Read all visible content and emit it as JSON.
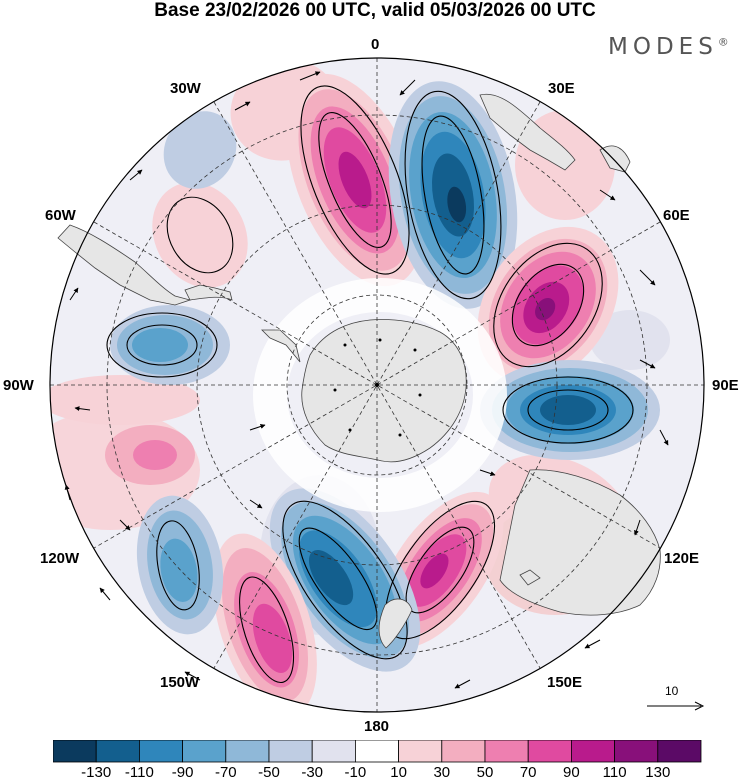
{
  "title": "Base 23/02/2026 00 UTC, valid 05/03/2026 00 UTC",
  "brand": "MODES",
  "brand_mark": "®",
  "longitude_labels": {
    "top": "0",
    "top_right": "30E",
    "right_upper": "60E",
    "right": "90E",
    "right_lower": "120E",
    "bottom_right": "150E",
    "bottom": "180",
    "bottom_left": "150W",
    "left_lower": "120W",
    "left": "90W",
    "left_upper": "60W",
    "top_left": "30W"
  },
  "reference_vector": {
    "label": "10"
  },
  "colorbar": {
    "ticks": [
      "-130",
      "-110",
      "-90",
      "-70",
      "-50",
      "-30",
      "-10",
      "10",
      "30",
      "50",
      "70",
      "90",
      "110",
      "130"
    ],
    "colors": [
      "#0b3a5e",
      "#135f8e",
      "#2f86bb",
      "#5aa2cc",
      "#8fb8d8",
      "#bfcde3",
      "#e1e2ee",
      "#ffffff",
      "#f7d2d7",
      "#f3aec0",
      "#ee7fb0",
      "#e04aa0",
      "#b91b8c",
      "#88107a",
      "#5b0a66"
    ]
  },
  "map": {
    "land_color": "#e6e6e6",
    "anomaly_centres": [
      {
        "name": "Positive centre south of Africa",
        "value": 120
      },
      {
        "name": "Negative centre south-west of Africa",
        "value": -120
      },
      {
        "name": "Positive centre southern Indian Ocean",
        "value": 115
      },
      {
        "name": "Negative centre near 90E",
        "value": -110
      },
      {
        "name": "Positive centre south of Australia",
        "value": 100
      },
      {
        "name": "Negative centre near 180",
        "value": -115
      },
      {
        "name": "Positive centre near 150W",
        "value": 95
      },
      {
        "name": "Negative centre near 120W",
        "value": -70
      },
      {
        "name": "Negative centre off southern South America",
        "value": -70
      },
      {
        "name": "Positive centre near 105W",
        "value": 60
      }
    ]
  }
}
